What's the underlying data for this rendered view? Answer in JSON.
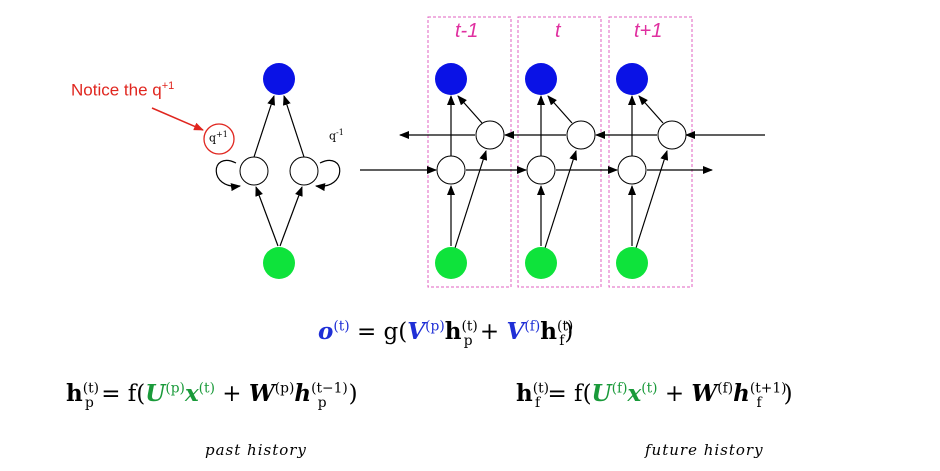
{
  "annotation": {
    "notice": "Notice the q",
    "notice_sup": "+1"
  },
  "loop_labels": {
    "left": "q",
    "left_sup": "+1",
    "right": "q",
    "right_sup": "-1"
  },
  "time_labels": [
    "t-1",
    "t",
    "t+1"
  ],
  "colors": {
    "output_node": "#0a12e6",
    "input_node": "#0ee33b",
    "frame": "#e060c0",
    "annotation": "#e0261f",
    "time_label": "#e030a0",
    "blue_term": "#1f2fd6",
    "green_term": "#1a9a3a"
  },
  "equations": {
    "output": {
      "o": "o",
      "sup_t": "(t)",
      "eq_g": " = g(",
      "V": "V",
      "sup_p": "(p)",
      "h": "h",
      "sub_p": "p",
      "plus": " + ",
      "sup_f": "(f)",
      "sub_f": "f",
      "close": ")"
    },
    "past": {
      "h": "h",
      "sup_t": "(t)",
      "sub_p": "p",
      "eq_f": " = f(",
      "U": "U",
      "sup_p": "(p)",
      "x": "x",
      "plus": " + ",
      "W": "W",
      "sup_tm1": "(t−1)",
      "close": ")"
    },
    "future": {
      "h": "h",
      "sup_t": "(t)",
      "sub_f": "f",
      "eq_f": " = f(",
      "U": "U",
      "sup_f": "(f)",
      "x": "x",
      "plus": " + ",
      "W": "W",
      "sup_tp1": "(t+1)",
      "close": ")"
    }
  },
  "brace_labels": {
    "past": "past history",
    "future": "future history"
  }
}
